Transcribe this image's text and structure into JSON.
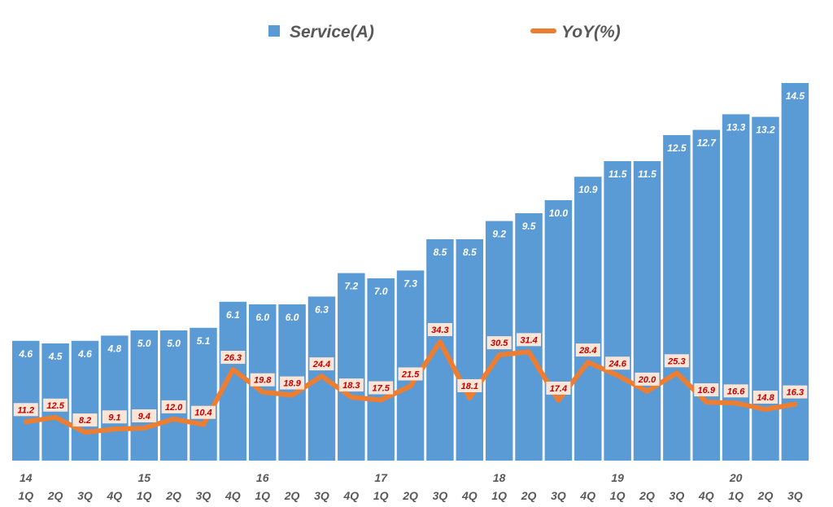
{
  "chart_data": {
    "type": "bar",
    "legend_position": "top",
    "grid": false,
    "colors": {
      "bar": "#5b9bd5",
      "line": "#ed7d31",
      "line_label_text": "#c00000",
      "line_label_bg": "#fbe5d6",
      "bar_label_text": "#ffffff",
      "axis_text": "#595959"
    },
    "categories": [
      "1Q",
      "2Q",
      "3Q",
      "4Q",
      "1Q",
      "2Q",
      "3Q",
      "4Q",
      "1Q",
      "2Q",
      "3Q",
      "4Q",
      "1Q",
      "2Q",
      "3Q",
      "4Q",
      "1Q",
      "2Q",
      "3Q",
      "4Q",
      "1Q",
      "2Q",
      "3Q",
      "4Q",
      "1Q",
      "2Q",
      "3Q"
    ],
    "years": [
      "14",
      "",
      "",
      "",
      "15",
      "",
      "",
      "",
      "16",
      "",
      "",
      "",
      "17",
      "",
      "",
      "",
      "18",
      "",
      "",
      "",
      "19",
      "",
      "",
      "",
      "20",
      "",
      ""
    ],
    "series": [
      {
        "name": "Service(A)",
        "type": "bar",
        "axis": "primary",
        "ylim": [
          0,
          14.5
        ],
        "values": [
          4.6,
          4.5,
          4.6,
          4.8,
          5.0,
          5.0,
          5.1,
          6.1,
          6.0,
          6.0,
          6.3,
          7.2,
          7.0,
          7.3,
          8.5,
          8.5,
          9.2,
          9.5,
          10.0,
          10.9,
          11.5,
          11.5,
          12.5,
          12.7,
          13.3,
          13.2,
          14.5
        ]
      },
      {
        "name": "YoY(%)",
        "type": "line",
        "axis": "secondary",
        "ylim": [
          0,
          109
        ],
        "values": [
          11.2,
          12.5,
          8.2,
          9.1,
          9.4,
          12.0,
          10.4,
          26.3,
          19.8,
          18.9,
          24.4,
          18.3,
          17.5,
          21.5,
          34.3,
          18.1,
          30.5,
          31.4,
          17.4,
          28.4,
          24.6,
          20.0,
          25.3,
          16.9,
          16.6,
          14.8,
          16.3
        ]
      }
    ]
  }
}
